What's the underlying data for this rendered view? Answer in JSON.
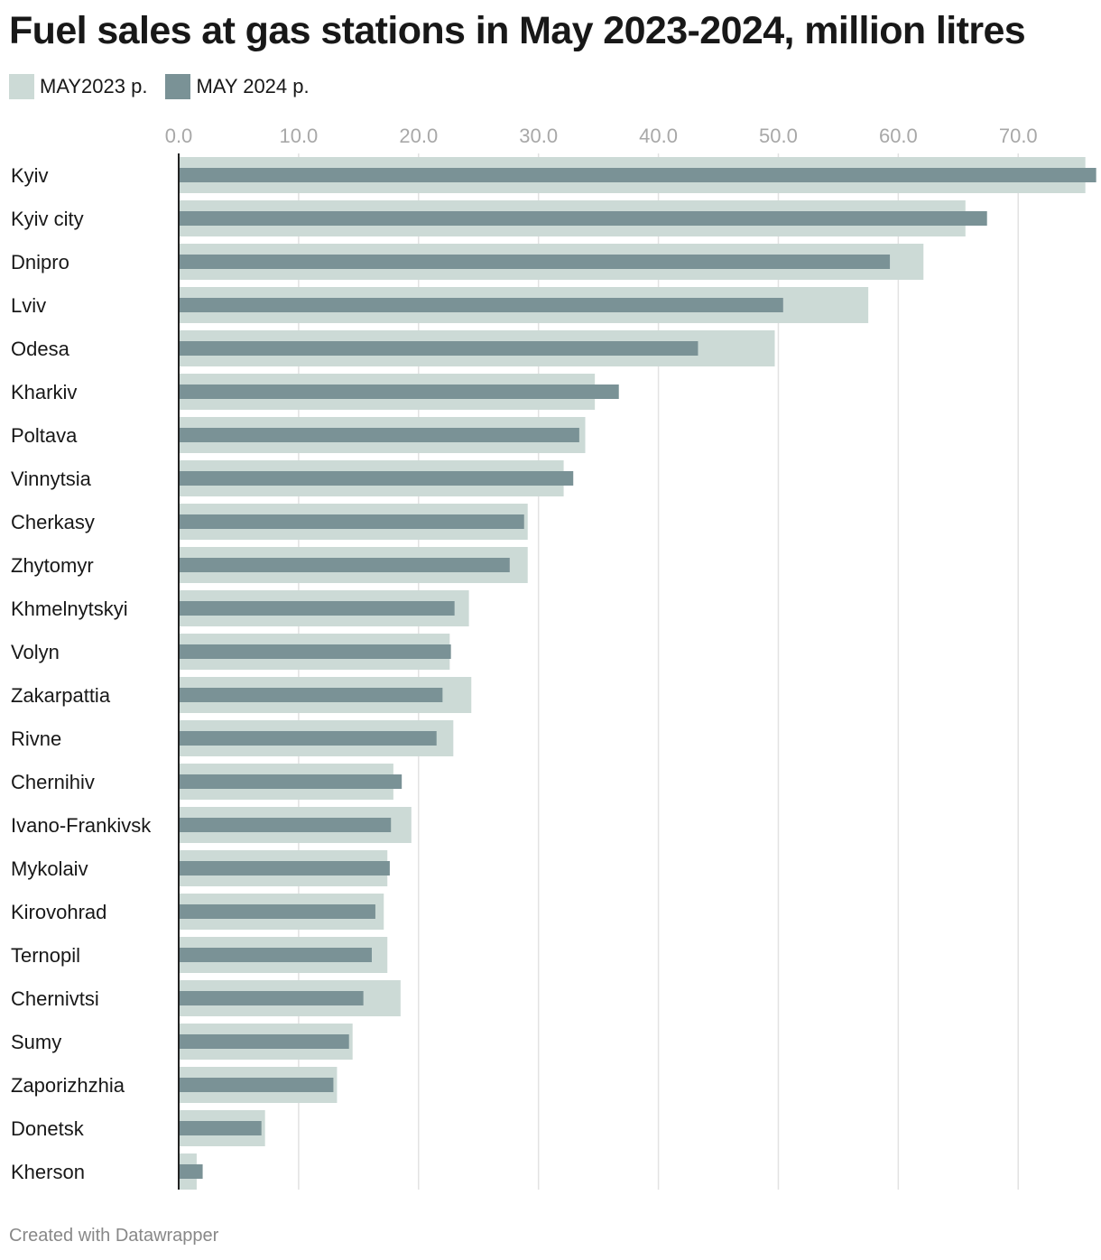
{
  "chart_data": {
    "type": "bar",
    "orientation": "horizontal",
    "title": "Fuel sales at gas stations in May 2023-2024, million litres",
    "xlabel": "",
    "ylabel": "",
    "xlim": [
      0,
      76
    ],
    "ticks": [
      0,
      10,
      20,
      30,
      40,
      50,
      60,
      70
    ],
    "tick_labels": [
      "0.0",
      "10.0",
      "20.0",
      "30.0",
      "40.0",
      "50.0",
      "60.0",
      "70.0"
    ],
    "grid": true,
    "legend_position": "top-left",
    "categories": [
      "Kyiv",
      "Kyiv city",
      "Dnipro",
      "Lviv",
      "Odesa",
      "Kharkiv",
      "Poltava",
      "Vinnytsia",
      "Cherkasy",
      "Zhytomyr",
      "Khmelnytskyi",
      "Volyn",
      "Zakarpattia",
      "Rivne",
      "Chernihiv",
      "Ivano-Frankivsk",
      "Mykolaiv",
      "Kirovohrad",
      "Ternopil",
      "Chernivtsi",
      "Sumy",
      "Zaporizhzhia",
      "Donetsk",
      "Kherson"
    ],
    "series": [
      {
        "name": "MAY2023 p.",
        "color": "#ccdad6",
        "values": [
          75.6,
          65.6,
          62.1,
          57.5,
          49.7,
          34.7,
          33.9,
          32.1,
          29.1,
          29.1,
          24.2,
          22.6,
          24.4,
          22.9,
          17.9,
          19.4,
          17.4,
          17.1,
          17.4,
          18.5,
          14.5,
          13.2,
          7.2,
          1.5
        ]
      },
      {
        "name": "MAY 2024 p.",
        "color": "#7a9296",
        "values": [
          76.5,
          67.4,
          59.3,
          50.4,
          43.3,
          36.7,
          33.4,
          32.9,
          28.8,
          27.6,
          23.0,
          22.7,
          22.0,
          21.5,
          18.6,
          17.7,
          17.6,
          16.4,
          16.1,
          15.4,
          14.2,
          12.9,
          6.9,
          2.0
        ]
      }
    ]
  },
  "footer": {
    "credit": "Created with Datawrapper"
  }
}
